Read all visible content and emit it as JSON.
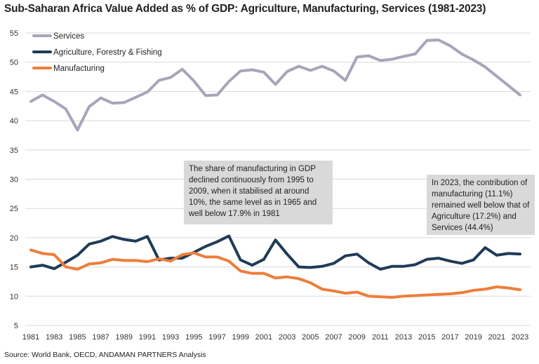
{
  "chart_data": {
    "type": "line",
    "title": "Sub-Saharan Africa Value Added as % of GDP: Agriculture, Manufacturing, Services (1981-2023)",
    "source": "Source: World Bank, OECD, ANDAMAN PARTNERS Analysis",
    "ylim": [
      5,
      55
    ],
    "yticks": [
      "5",
      "10",
      "15",
      "20",
      "25",
      "30",
      "35",
      "40",
      "45",
      "50",
      "55"
    ],
    "xticks": [
      "1981",
      "1983",
      "1985",
      "1987",
      "1989",
      "1991",
      "1993",
      "1995",
      "1997",
      "1999",
      "2001",
      "2003",
      "2005",
      "2007",
      "2009",
      "2011",
      "2013",
      "2015",
      "2017",
      "2019",
      "2021",
      "2023"
    ],
    "grid": "horizontal",
    "legend_position": "top-left",
    "x": [
      1981,
      1982,
      1983,
      1984,
      1985,
      1986,
      1987,
      1988,
      1989,
      1990,
      1991,
      1992,
      1993,
      1994,
      1995,
      1996,
      1997,
      1998,
      1999,
      2000,
      2001,
      2002,
      2003,
      2004,
      2005,
      2006,
      2007,
      2008,
      2009,
      2010,
      2011,
      2012,
      2013,
      2014,
      2015,
      2016,
      2017,
      2018,
      2019,
      2020,
      2021,
      2022,
      2023
    ],
    "series": [
      {
        "name": "Services",
        "color": "#a7a5b8",
        "values": [
          43.3,
          44.4,
          43.3,
          42.0,
          38.4,
          42.4,
          43.9,
          43.0,
          43.1,
          44.0,
          44.9,
          46.9,
          47.4,
          48.8,
          46.8,
          44.3,
          44.4,
          46.7,
          48.5,
          48.7,
          48.3,
          46.2,
          48.4,
          49.3,
          48.6,
          49.3,
          48.5,
          46.9,
          50.9,
          51.1,
          50.3,
          50.5,
          51.0,
          51.4,
          53.7,
          53.8,
          52.8,
          51.4,
          50.4,
          49.2,
          47.6,
          46.0,
          44.4
        ]
      },
      {
        "name": "Agriculture, Forestry & Fishing",
        "color": "#1f3b57",
        "values": [
          15.0,
          15.3,
          14.7,
          15.8,
          17.0,
          18.9,
          19.4,
          20.2,
          19.7,
          19.4,
          20.2,
          16.2,
          16.5,
          16.5,
          17.5,
          18.5,
          19.3,
          20.3,
          16.2,
          15.3,
          16.3,
          19.6,
          17.2,
          15.0,
          14.9,
          15.1,
          15.6,
          16.9,
          17.2,
          15.7,
          14.6,
          15.1,
          15.1,
          15.4,
          16.3,
          16.5,
          16.0,
          15.6,
          16.2,
          18.3,
          17.0,
          17.3,
          17.2
        ]
      },
      {
        "name": "Manufacturing",
        "color": "#ef7d3a",
        "values": [
          17.9,
          17.3,
          17.1,
          15.0,
          14.6,
          15.5,
          15.7,
          16.3,
          16.1,
          16.1,
          15.9,
          16.4,
          16.0,
          17.1,
          17.4,
          16.7,
          16.7,
          16.0,
          14.3,
          13.9,
          13.9,
          13.1,
          13.3,
          13.0,
          12.3,
          11.2,
          10.9,
          10.5,
          10.7,
          10.0,
          9.9,
          9.8,
          10.0,
          10.1,
          10.2,
          10.3,
          10.4,
          10.6,
          11.0,
          11.2,
          11.6,
          11.4,
          11.1
        ]
      }
    ],
    "annotations": [
      "The share of manufacturing in GDP declined continuously from 1995 to 2009, when it stabilised at around 10%, the same level as in 1965 and well below 17.9% in 1981",
      "In 2023, the contribution of manufacturing (11.1%) remained well below that of Agriculture (17.2%) and Services (44.4%)"
    ]
  }
}
